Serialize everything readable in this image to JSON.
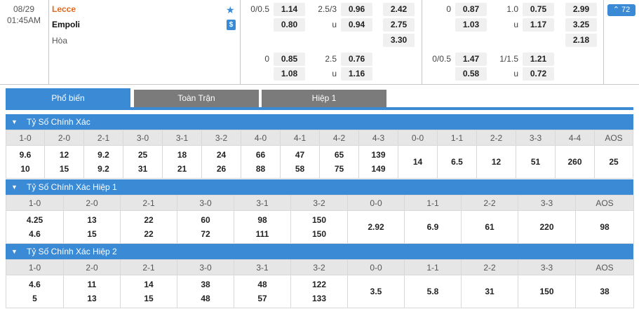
{
  "match": {
    "date": "08/29",
    "time": "01:45AM",
    "home_team": "Lecce",
    "away_team": "Empoli",
    "draw_label": "Hòa",
    "favorite_icon": "star-icon",
    "money_icon": "dollar-icon",
    "more_count": "72",
    "more_icon": "chevron-up-icon",
    "colors": {
      "accent": "#3a8ad6",
      "home": "#e0681e",
      "tab_inactive": "#7b7b7b",
      "header_row": "#e6e6e6"
    }
  },
  "odds": {
    "ft": {
      "hdp_main": {
        "line": "0/0.5",
        "home": "1.14",
        "away": "0.80"
      },
      "ou_main": {
        "line": "2.5/3",
        "over": "0.96",
        "under_label": "u",
        "under": "0.94"
      },
      "x12": {
        "home": "2.42",
        "away": "2.75",
        "draw": "3.30"
      },
      "hdp_alt": {
        "line": "0",
        "home": "0.85",
        "away": "1.08"
      },
      "ou_alt": {
        "line": "2.5",
        "over": "0.76",
        "under_label": "u",
        "under": "1.16"
      }
    },
    "h1": {
      "hdp_main": {
        "line": "0",
        "home": "0.87",
        "away": "1.03"
      },
      "ou_main": {
        "line": "1.0",
        "over": "0.75",
        "under_label": "u",
        "under": "1.17"
      },
      "x12": {
        "home": "2.99",
        "away": "3.25",
        "draw": "2.18"
      },
      "hdp_alt": {
        "line": "0/0.5",
        "home": "1.47",
        "away": "0.58"
      },
      "ou_alt": {
        "line": "1/1.5",
        "over": "1.21",
        "under_label": "u",
        "under": "0.72"
      }
    }
  },
  "tabs": [
    "Phổ biến",
    "Toàn Trận",
    "Hiệp 1"
  ],
  "sections": [
    {
      "title": "Tỷ Số Chính Xác",
      "scores": [
        "1-0",
        "2-0",
        "2-1",
        "3-0",
        "3-1",
        "3-2",
        "4-0",
        "4-1",
        "4-2",
        "4-3",
        "0-0",
        "1-1",
        "2-2",
        "3-3",
        "4-4",
        "AOS"
      ],
      "home": [
        "9.6",
        "12",
        "9.2",
        "25",
        "18",
        "24",
        "66",
        "47",
        "65",
        "139"
      ],
      "away": [
        "10",
        "15",
        "9.2",
        "31",
        "21",
        "26",
        "88",
        "58",
        "75",
        "149"
      ],
      "single": [
        "14",
        "6.5",
        "12",
        "51",
        "260",
        "25"
      ]
    },
    {
      "title": "Tỷ Số Chính Xác Hiệp 1",
      "scores": [
        "1-0",
        "2-0",
        "2-1",
        "3-0",
        "3-1",
        "3-2",
        "0-0",
        "1-1",
        "2-2",
        "3-3",
        "AOS"
      ],
      "home": [
        "4.25",
        "13",
        "22",
        "60",
        "98",
        "150"
      ],
      "away": [
        "4.6",
        "15",
        "22",
        "72",
        "111",
        "150"
      ],
      "single": [
        "2.92",
        "6.9",
        "61",
        "220",
        "98"
      ]
    },
    {
      "title": "Tỷ Số Chính Xác Hiệp 2",
      "scores": [
        "1-0",
        "2-0",
        "2-1",
        "3-0",
        "3-1",
        "3-2",
        "0-0",
        "1-1",
        "2-2",
        "3-3",
        "AOS"
      ],
      "home": [
        "4.6",
        "11",
        "14",
        "38",
        "48",
        "122"
      ],
      "away": [
        "5",
        "13",
        "15",
        "48",
        "57",
        "133"
      ],
      "single": [
        "3.5",
        "5.8",
        "31",
        "150",
        "38"
      ]
    }
  ]
}
